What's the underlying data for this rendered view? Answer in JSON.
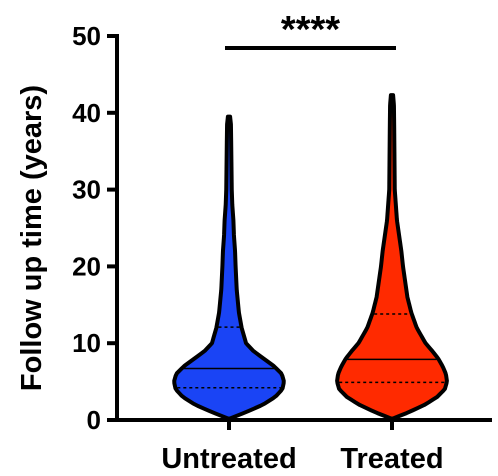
{
  "chart_data": {
    "type": "violin",
    "ylabel": "Follow up time (years)",
    "xlabel": "",
    "ylim": [
      0,
      50
    ],
    "yticks": [
      0,
      10,
      20,
      30,
      40,
      50
    ],
    "ytick_labels": [
      "0",
      "10",
      "20",
      "30",
      "40",
      "50"
    ],
    "categories": [
      "Untreated",
      "Treated"
    ],
    "series": [
      {
        "category": "Untreated",
        "color": "#1a44f5",
        "min": 0.2,
        "max": 39.5,
        "q1": 4.2,
        "median": 6.7,
        "q3": 12.1,
        "density_profile": [
          [
            0.2,
            0.02
          ],
          [
            1.0,
            0.3
          ],
          [
            2.0,
            0.62
          ],
          [
            3.0,
            0.84
          ],
          [
            4.0,
            0.97
          ],
          [
            5.0,
            1.0
          ],
          [
            6.0,
            0.96
          ],
          [
            7.0,
            0.82
          ],
          [
            8.0,
            0.63
          ],
          [
            9.0,
            0.44
          ],
          [
            10.0,
            0.31
          ],
          [
            12.0,
            0.23
          ],
          [
            14.0,
            0.18
          ],
          [
            17.0,
            0.14
          ],
          [
            20.0,
            0.12
          ],
          [
            22.0,
            0.11
          ],
          [
            24.0,
            0.09
          ],
          [
            26.0,
            0.08
          ],
          [
            28.0,
            0.06
          ],
          [
            30.0,
            0.05
          ],
          [
            33.0,
            0.045
          ],
          [
            36.0,
            0.04
          ],
          [
            38.5,
            0.035
          ],
          [
            39.5,
            0.02
          ]
        ]
      },
      {
        "category": "Treated",
        "color": "#ff2a00",
        "min": 0.2,
        "max": 42.3,
        "q1": 4.9,
        "median": 7.9,
        "q3": 13.8,
        "density_profile": [
          [
            0.2,
            0.02
          ],
          [
            1.0,
            0.3
          ],
          [
            2.0,
            0.6
          ],
          [
            3.0,
            0.82
          ],
          [
            4.0,
            0.96
          ],
          [
            5.0,
            1.0
          ],
          [
            6.0,
            0.98
          ],
          [
            7.0,
            0.92
          ],
          [
            8.0,
            0.84
          ],
          [
            9.0,
            0.73
          ],
          [
            10.0,
            0.61
          ],
          [
            12.0,
            0.45
          ],
          [
            14.0,
            0.35
          ],
          [
            16.0,
            0.28
          ],
          [
            18.0,
            0.24
          ],
          [
            20.0,
            0.2
          ],
          [
            22.0,
            0.17
          ],
          [
            24.0,
            0.13
          ],
          [
            26.0,
            0.09
          ],
          [
            28.0,
            0.07
          ],
          [
            30.0,
            0.05
          ],
          [
            34.0,
            0.045
          ],
          [
            38.0,
            0.04
          ],
          [
            41.0,
            0.035
          ],
          [
            42.3,
            0.02
          ]
        ]
      }
    ],
    "annotations": [
      {
        "text": "****",
        "between": [
          "Untreated",
          "Treated"
        ]
      }
    ]
  }
}
